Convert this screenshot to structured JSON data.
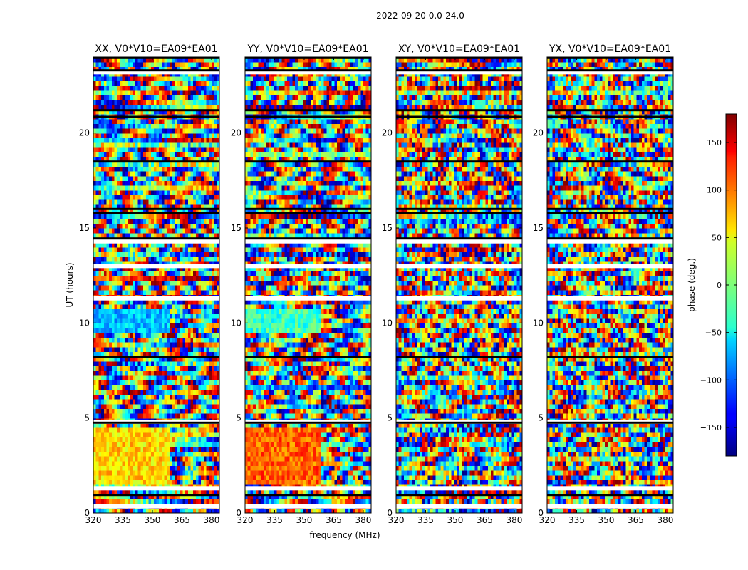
{
  "figure": {
    "suptitle": "2022-09-20 0.0-24.0",
    "shared_xlabel": "frequency (MHz)",
    "shared_ylabel": "UT (hours)"
  },
  "chart_data": {
    "type": "heatmap",
    "title": "2022-09-20 0.0-24.0",
    "xlabel": "frequency (MHz)",
    "ylabel": "UT (hours)",
    "xlim": [
      320,
      384
    ],
    "ylim": [
      0,
      24
    ],
    "xticks": [
      "320",
      "335",
      "350",
      "365",
      "380"
    ],
    "yticks": [
      "0",
      "5",
      "10",
      "15",
      "20"
    ],
    "panels": [
      {
        "title": "XX, V0*V10=EA09*EA01",
        "pol": "XX"
      },
      {
        "title": "YY, V0*V10=EA09*EA01",
        "pol": "YY"
      },
      {
        "title": "XY, V0*V10=EA09*EA01",
        "pol": "XY"
      },
      {
        "title": "YX, V0*V10=EA09*EA01",
        "pol": "YX"
      }
    ],
    "colorbar": {
      "label": "phase (deg.)",
      "range": [
        -180,
        180
      ],
      "colormap": "jet",
      "ticks": [
        "150",
        "100",
        "50",
        "0",
        "−50",
        "−100",
        "−150"
      ]
    },
    "flagged_ut_hours": [
      0.35,
      1.3,
      4.8,
      11.3,
      13.0,
      14.3,
      23.2
    ],
    "dark_ut_hours": [
      0.95,
      4.75,
      8.2,
      14.45,
      15.8,
      16.0,
      18.5,
      20.85,
      21.2,
      23.3,
      23.95
    ]
  }
}
